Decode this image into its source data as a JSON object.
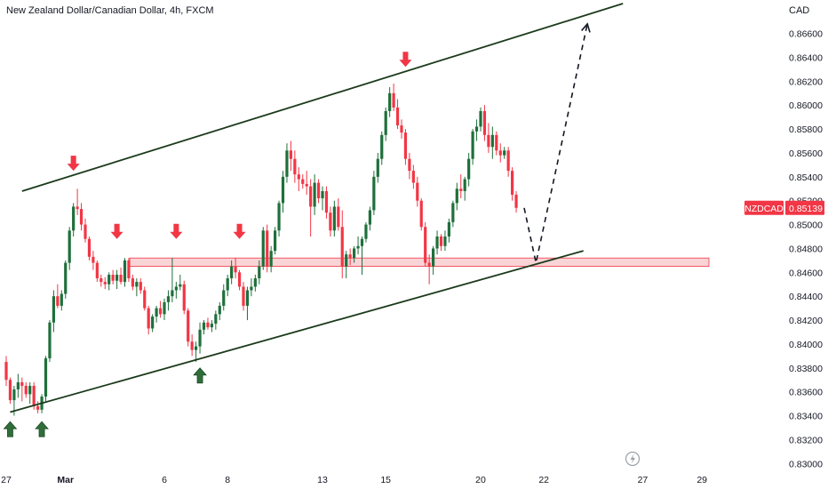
{
  "header": {
    "title": "New Zealand Dollar/Canadian Dollar, 4h, FXCM",
    "currency": "CAD"
  },
  "price_tag": {
    "symbol": "NZDCAD",
    "value": "0.85139",
    "color": "#f23645"
  },
  "colors": {
    "up": "#1f6f3b",
    "down": "#f23645",
    "channel": "#1b3a1b",
    "zone_fill": "#f7c9cd",
    "zone_stroke": "#f23645"
  },
  "icons": [
    "lightning-icon",
    "arrow-down-icon",
    "arrow-up-icon"
  ],
  "chart_data": {
    "type": "candlestick",
    "y_axis": {
      "range": [
        0.8295,
        0.8688
      ],
      "ticks": [
        "0.86600",
        "0.86400",
        "0.86200",
        "0.86000",
        "0.85800",
        "0.85600",
        "0.85400",
        "0.85200",
        "0.85000",
        "0.84800",
        "0.84600",
        "0.84400",
        "0.84200",
        "0.84000",
        "0.83800",
        "0.83600",
        "0.83400",
        "0.83200",
        "0.83000"
      ],
      "tick_values": [
        0.866,
        0.864,
        0.862,
        0.86,
        0.858,
        0.856,
        0.854,
        0.852,
        0.85,
        0.848,
        0.846,
        0.844,
        0.842,
        0.84,
        0.838,
        0.836,
        0.834,
        0.832,
        0.83
      ]
    },
    "x_axis": {
      "ticks": [
        {
          "label": "27",
          "bar": 0
        },
        {
          "label": "Mar",
          "bar": 15
        },
        {
          "label": "6",
          "bar": 40
        },
        {
          "label": "8",
          "bar": 56
        },
        {
          "label": "13",
          "bar": 80
        },
        {
          "label": "15",
          "bar": 96
        },
        {
          "label": "20",
          "bar": 120
        },
        {
          "label": "22",
          "bar": 136
        },
        {
          "label": "27",
          "bar": 161
        },
        {
          "label": "29",
          "bar": 176
        }
      ]
    },
    "candles": [
      [
        0.8385,
        0.839,
        0.8365,
        0.837
      ],
      [
        0.837,
        0.8372,
        0.835,
        0.8353
      ],
      [
        0.8353,
        0.8365,
        0.834,
        0.8362
      ],
      [
        0.8362,
        0.8375,
        0.8355,
        0.8368
      ],
      [
        0.8368,
        0.8372,
        0.8352,
        0.8365
      ],
      [
        0.8365,
        0.8368,
        0.8355,
        0.8358
      ],
      [
        0.8358,
        0.8368,
        0.835,
        0.8365
      ],
      [
        0.8365,
        0.8368,
        0.8345,
        0.8348
      ],
      [
        0.8348,
        0.8352,
        0.8342,
        0.8345
      ],
      [
        0.8345,
        0.8358,
        0.8342,
        0.8356
      ],
      [
        0.8356,
        0.839,
        0.8352,
        0.8388
      ],
      [
        0.8388,
        0.842,
        0.8385,
        0.8418
      ],
      [
        0.8418,
        0.8445,
        0.841,
        0.844
      ],
      [
        0.844,
        0.845,
        0.843,
        0.8432
      ],
      [
        0.8432,
        0.8445,
        0.8428,
        0.8442
      ],
      [
        0.8442,
        0.847,
        0.8438,
        0.8468
      ],
      [
        0.8468,
        0.8498,
        0.8462,
        0.8495
      ],
      [
        0.8495,
        0.8518,
        0.849,
        0.8515
      ],
      [
        0.8515,
        0.853,
        0.8508,
        0.8513
      ],
      [
        0.8513,
        0.8518,
        0.8495,
        0.85
      ],
      [
        0.85,
        0.8505,
        0.8485,
        0.8488
      ],
      [
        0.8488,
        0.849,
        0.847,
        0.8473
      ],
      [
        0.8473,
        0.8478,
        0.8462,
        0.8468
      ],
      [
        0.8468,
        0.847,
        0.8452,
        0.8455
      ],
      [
        0.8455,
        0.8458,
        0.8448,
        0.8452
      ],
      [
        0.8452,
        0.8456,
        0.8446,
        0.845
      ],
      [
        0.845,
        0.846,
        0.8445,
        0.8458
      ],
      [
        0.8458,
        0.8462,
        0.845,
        0.8453
      ],
      [
        0.8453,
        0.8462,
        0.8446,
        0.8458
      ],
      [
        0.8458,
        0.8464,
        0.845,
        0.8452
      ],
      [
        0.8452,
        0.8472,
        0.8448,
        0.847
      ],
      [
        0.847,
        0.8472,
        0.8452,
        0.8455
      ],
      [
        0.8455,
        0.8458,
        0.8445,
        0.8448
      ],
      [
        0.8448,
        0.8455,
        0.844,
        0.8452
      ],
      [
        0.8452,
        0.8455,
        0.8442,
        0.8445
      ],
      [
        0.8445,
        0.8448,
        0.8428,
        0.843
      ],
      [
        0.843,
        0.8432,
        0.8408,
        0.8413
      ],
      [
        0.8413,
        0.8425,
        0.841,
        0.8423
      ],
      [
        0.8423,
        0.8432,
        0.8418,
        0.843
      ],
      [
        0.843,
        0.8436,
        0.8422,
        0.8425
      ],
      [
        0.8425,
        0.8438,
        0.842,
        0.8435
      ],
      [
        0.8435,
        0.8445,
        0.8428,
        0.844
      ],
      [
        0.844,
        0.8472,
        0.8435,
        0.8445
      ],
      [
        0.8445,
        0.8452,
        0.8438,
        0.8448
      ],
      [
        0.8448,
        0.8458,
        0.8445,
        0.845
      ],
      [
        0.845,
        0.8453,
        0.8425,
        0.8428
      ],
      [
        0.8428,
        0.843,
        0.8398,
        0.8402
      ],
      [
        0.8402,
        0.8408,
        0.839,
        0.8395
      ],
      [
        0.8395,
        0.8402,
        0.8385,
        0.8398
      ],
      [
        0.8398,
        0.8418,
        0.8392,
        0.8412
      ],
      [
        0.8412,
        0.842,
        0.8408,
        0.8418
      ],
      [
        0.8418,
        0.8422,
        0.8412,
        0.8414
      ],
      [
        0.8414,
        0.842,
        0.841,
        0.8417
      ],
      [
        0.8417,
        0.8428,
        0.8412,
        0.8425
      ],
      [
        0.8425,
        0.8435,
        0.842,
        0.8432
      ],
      [
        0.8432,
        0.845,
        0.8428,
        0.8445
      ],
      [
        0.8445,
        0.8458,
        0.844,
        0.8455
      ],
      [
        0.8455,
        0.847,
        0.845,
        0.8465
      ],
      [
        0.8465,
        0.8472,
        0.8455,
        0.846
      ],
      [
        0.846,
        0.8462,
        0.8445,
        0.8448
      ],
      [
        0.8448,
        0.8452,
        0.8428,
        0.8432
      ],
      [
        0.8432,
        0.8448,
        0.842,
        0.8445
      ],
      [
        0.8445,
        0.8455,
        0.844,
        0.8448
      ],
      [
        0.8448,
        0.8458,
        0.8444,
        0.8455
      ],
      [
        0.8455,
        0.847,
        0.845,
        0.8465
      ],
      [
        0.8465,
        0.8498,
        0.8462,
        0.8495
      ],
      [
        0.8495,
        0.85,
        0.846,
        0.8465
      ],
      [
        0.8465,
        0.8482,
        0.846,
        0.8478
      ],
      [
        0.8478,
        0.8498,
        0.8475,
        0.8495
      ],
      [
        0.8495,
        0.852,
        0.849,
        0.8518
      ],
      [
        0.8518,
        0.8545,
        0.851,
        0.854
      ],
      [
        0.854,
        0.8568,
        0.8535,
        0.8562
      ],
      [
        0.8562,
        0.857,
        0.8545,
        0.8555
      ],
      [
        0.8555,
        0.8562,
        0.8535,
        0.8542
      ],
      [
        0.8542,
        0.8548,
        0.8528,
        0.8538
      ],
      [
        0.8538,
        0.8542,
        0.853,
        0.8534
      ],
      [
        0.8534,
        0.8545,
        0.8525,
        0.8532
      ],
      [
        0.8532,
        0.8538,
        0.849,
        0.8515
      ],
      [
        0.8515,
        0.8542,
        0.8508,
        0.8535
      ],
      [
        0.8535,
        0.8538,
        0.8518,
        0.8522
      ],
      [
        0.8522,
        0.8532,
        0.8512,
        0.8528
      ],
      [
        0.8528,
        0.8532,
        0.8505,
        0.851
      ],
      [
        0.851,
        0.8515,
        0.849,
        0.8495
      ],
      [
        0.8495,
        0.852,
        0.849,
        0.8515
      ],
      [
        0.8515,
        0.8522,
        0.8495,
        0.8498
      ],
      [
        0.8498,
        0.8512,
        0.8455,
        0.8465
      ],
      [
        0.8465,
        0.8478,
        0.8455,
        0.8475
      ],
      [
        0.8475,
        0.848,
        0.8466,
        0.8472
      ],
      [
        0.8472,
        0.8482,
        0.8468,
        0.848
      ],
      [
        0.848,
        0.849,
        0.8475,
        0.8482
      ],
      [
        0.8482,
        0.849,
        0.8458,
        0.8488
      ],
      [
        0.8488,
        0.8502,
        0.8485,
        0.85
      ],
      [
        0.85,
        0.8515,
        0.8495,
        0.8512
      ],
      [
        0.8512,
        0.8545,
        0.8508,
        0.854
      ],
      [
        0.854,
        0.856,
        0.8535,
        0.8555
      ],
      [
        0.8555,
        0.8578,
        0.855,
        0.8575
      ],
      [
        0.8575,
        0.8598,
        0.857,
        0.8595
      ],
      [
        0.8595,
        0.8615,
        0.859,
        0.861
      ],
      [
        0.861,
        0.8618,
        0.8595,
        0.8598
      ],
      [
        0.8598,
        0.8605,
        0.858,
        0.8583
      ],
      [
        0.8583,
        0.8588,
        0.8572,
        0.8577
      ],
      [
        0.8577,
        0.858,
        0.855,
        0.8555
      ],
      [
        0.8555,
        0.856,
        0.8538,
        0.8545
      ],
      [
        0.8545,
        0.855,
        0.853,
        0.8535
      ],
      [
        0.8535,
        0.854,
        0.8515,
        0.852
      ],
      [
        0.852,
        0.8522,
        0.8495,
        0.8498
      ],
      [
        0.8498,
        0.8502,
        0.8465,
        0.8468
      ],
      [
        0.8468,
        0.8475,
        0.845,
        0.8465
      ],
      [
        0.8465,
        0.8482,
        0.8458,
        0.848
      ],
      [
        0.848,
        0.8495,
        0.8475,
        0.849
      ],
      [
        0.849,
        0.8492,
        0.8478,
        0.8482
      ],
      [
        0.8482,
        0.8495,
        0.8478,
        0.849
      ],
      [
        0.849,
        0.8505,
        0.8485,
        0.8502
      ],
      [
        0.8502,
        0.852,
        0.8498,
        0.8518
      ],
      [
        0.8518,
        0.8535,
        0.8512,
        0.853
      ],
      [
        0.853,
        0.8542,
        0.8522,
        0.8528
      ],
      [
        0.8528,
        0.854,
        0.852,
        0.8538
      ],
      [
        0.8538,
        0.856,
        0.8532,
        0.8555
      ],
      [
        0.8555,
        0.858,
        0.855,
        0.8578
      ],
      [
        0.8578,
        0.8588,
        0.857,
        0.8582
      ],
      [
        0.8582,
        0.8598,
        0.8578,
        0.8595
      ],
      [
        0.8595,
        0.86,
        0.857,
        0.8575
      ],
      [
        0.8575,
        0.8585,
        0.856,
        0.8565
      ],
      [
        0.8565,
        0.8582,
        0.8555,
        0.8575
      ],
      [
        0.8575,
        0.8578,
        0.8558,
        0.8562
      ],
      [
        0.8562,
        0.8568,
        0.8552,
        0.8558
      ],
      [
        0.8558,
        0.8565,
        0.8555,
        0.8562
      ],
      [
        0.8562,
        0.8565,
        0.854,
        0.8545
      ],
      [
        0.8545,
        0.8548,
        0.852,
        0.8525
      ],
      [
        0.8525,
        0.8528,
        0.851,
        0.8514
      ]
    ],
    "price_zone": [
      0.8465,
      0.8472
    ],
    "channel_upper": [
      [
        4,
        0.8528
      ],
      [
        156,
        0.8685
      ]
    ],
    "channel_lower": [
      [
        1,
        0.8343
      ],
      [
        146,
        0.8478
      ]
    ],
    "projection_path": [
      [
        131,
        0.8514
      ],
      [
        134,
        0.8468
      ],
      [
        147,
        0.8668
      ]
    ],
    "markers_down": [
      {
        "bar": 17,
        "price": 0.8545
      },
      {
        "bar": 28,
        "price": 0.8488
      },
      {
        "bar": 43,
        "price": 0.8488
      },
      {
        "bar": 59,
        "price": 0.8488
      },
      {
        "bar": 101,
        "price": 0.8632
      }
    ],
    "markers_up": [
      {
        "bar": 1,
        "price": 0.8335
      },
      {
        "bar": 9,
        "price": 0.8335
      },
      {
        "bar": 49,
        "price": 0.838
      }
    ]
  }
}
